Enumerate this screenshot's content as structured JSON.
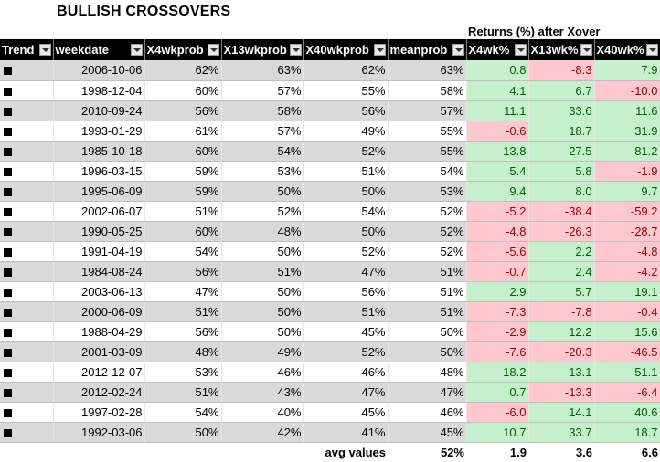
{
  "title": "BULLISH CROSSOVERS",
  "returns_title": "Returns (%) after Xover",
  "headers": {
    "trend": "Trend",
    "weekdate": "weekdate",
    "x4wkprob": "X4wkprob",
    "x13wkprob": "X13wkprob",
    "x40wkprob": "X40wkprob",
    "meanprob": "meanprob",
    "x4wk": "X4wk%",
    "x13wk": "X13wk%",
    "x40wk": "X40wk%"
  },
  "rows": [
    {
      "weekdate": "2006-10-06",
      "x4wkprob": "62%",
      "x13wkprob": "63%",
      "x40wkprob": "62%",
      "meanprob": "63%",
      "x4wk": "0.8",
      "x13wk": "-8.3",
      "x40wk": "7.9"
    },
    {
      "weekdate": "1998-12-04",
      "x4wkprob": "60%",
      "x13wkprob": "57%",
      "x40wkprob": "55%",
      "meanprob": "58%",
      "x4wk": "4.1",
      "x13wk": "6.7",
      "x40wk": "-10.0"
    },
    {
      "weekdate": "2010-09-24",
      "x4wkprob": "56%",
      "x13wkprob": "58%",
      "x40wkprob": "56%",
      "meanprob": "57%",
      "x4wk": "11.1",
      "x13wk": "33.6",
      "x40wk": "11.6"
    },
    {
      "weekdate": "1993-01-29",
      "x4wkprob": "61%",
      "x13wkprob": "57%",
      "x40wkprob": "49%",
      "meanprob": "55%",
      "x4wk": "-0.6",
      "x13wk": "18.7",
      "x40wk": "31.9"
    },
    {
      "weekdate": "1985-10-18",
      "x4wkprob": "60%",
      "x13wkprob": "54%",
      "x40wkprob": "52%",
      "meanprob": "55%",
      "x4wk": "13.8",
      "x13wk": "27.5",
      "x40wk": "81.2"
    },
    {
      "weekdate": "1996-03-15",
      "x4wkprob": "59%",
      "x13wkprob": "53%",
      "x40wkprob": "51%",
      "meanprob": "54%",
      "x4wk": "5.4",
      "x13wk": "5.8",
      "x40wk": "-1.9"
    },
    {
      "weekdate": "1995-06-09",
      "x4wkprob": "59%",
      "x13wkprob": "50%",
      "x40wkprob": "50%",
      "meanprob": "53%",
      "x4wk": "9.4",
      "x13wk": "8.0",
      "x40wk": "9.7"
    },
    {
      "weekdate": "2002-06-07",
      "x4wkprob": "51%",
      "x13wkprob": "52%",
      "x40wkprob": "54%",
      "meanprob": "52%",
      "x4wk": "-5.2",
      "x13wk": "-38.4",
      "x40wk": "-59.2"
    },
    {
      "weekdate": "1990-05-25",
      "x4wkprob": "60%",
      "x13wkprob": "48%",
      "x40wkprob": "50%",
      "meanprob": "52%",
      "x4wk": "-4.8",
      "x13wk": "-26.3",
      "x40wk": "-28.7"
    },
    {
      "weekdate": "1991-04-19",
      "x4wkprob": "54%",
      "x13wkprob": "50%",
      "x40wkprob": "52%",
      "meanprob": "52%",
      "x4wk": "-5.6",
      "x13wk": "2.2",
      "x40wk": "-4.8"
    },
    {
      "weekdate": "1984-08-24",
      "x4wkprob": "56%",
      "x13wkprob": "51%",
      "x40wkprob": "47%",
      "meanprob": "51%",
      "x4wk": "-0.7",
      "x13wk": "2.4",
      "x40wk": "-4.2"
    },
    {
      "weekdate": "2003-06-13",
      "x4wkprob": "47%",
      "x13wkprob": "50%",
      "x40wkprob": "56%",
      "meanprob": "51%",
      "x4wk": "2.9",
      "x13wk": "5.7",
      "x40wk": "19.1"
    },
    {
      "weekdate": "2000-06-09",
      "x4wkprob": "51%",
      "x13wkprob": "50%",
      "x40wkprob": "51%",
      "meanprob": "51%",
      "x4wk": "-7.3",
      "x13wk": "-7.8",
      "x40wk": "-0.4"
    },
    {
      "weekdate": "1988-04-29",
      "x4wkprob": "56%",
      "x13wkprob": "50%",
      "x40wkprob": "45%",
      "meanprob": "50%",
      "x4wk": "-2.9",
      "x13wk": "12.2",
      "x40wk": "15.6"
    },
    {
      "weekdate": "2001-03-09",
      "x4wkprob": "48%",
      "x13wkprob": "49%",
      "x40wkprob": "52%",
      "meanprob": "50%",
      "x4wk": "-7.6",
      "x13wk": "-20.3",
      "x40wk": "-46.5"
    },
    {
      "weekdate": "2012-12-07",
      "x4wkprob": "53%",
      "x13wkprob": "46%",
      "x40wkprob": "46%",
      "meanprob": "48%",
      "x4wk": "18.2",
      "x13wk": "13.1",
      "x40wk": "51.1"
    },
    {
      "weekdate": "2012-02-24",
      "x4wkprob": "51%",
      "x13wkprob": "43%",
      "x40wkprob": "47%",
      "meanprob": "47%",
      "x4wk": "0.7",
      "x13wk": "-13.3",
      "x40wk": "-6.4"
    },
    {
      "weekdate": "1997-02-28",
      "x4wkprob": "54%",
      "x13wkprob": "40%",
      "x40wkprob": "45%",
      "meanprob": "46%",
      "x4wk": "-6.0",
      "x13wk": "14.1",
      "x40wk": "40.6"
    },
    {
      "weekdate": "1992-03-06",
      "x4wkprob": "50%",
      "x13wkprob": "42%",
      "x40wkprob": "41%",
      "meanprob": "45%",
      "x4wk": "10.7",
      "x13wk": "33.7",
      "x40wk": "18.7"
    }
  ],
  "footer": {
    "label": "avg values",
    "meanprob": "52%",
    "x4wk": "1.9",
    "x13wk": "3.6",
    "x40wk": "6.6"
  },
  "colors": {
    "positive_fill": "#c6efce",
    "positive_text": "#006100",
    "negative_fill": "#ffc7ce",
    "negative_text": "#9c0006",
    "stripe": "#d9d9d9"
  }
}
